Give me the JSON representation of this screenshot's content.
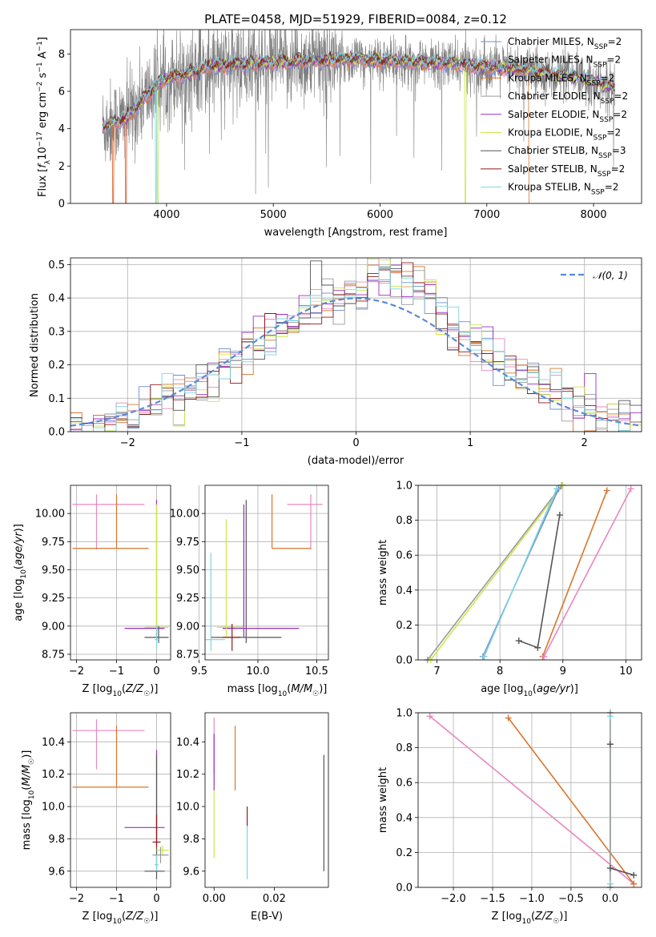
{
  "colors": {
    "Chabrier MILES": "#6d8fd2",
    "Salpeter MILES": "#e887c2",
    "Kroupa MILES": "#d9762c",
    "Chabrier ELODIE": "#9a9a9a",
    "Salpeter ELODIE": "#9b2fbf",
    "Kroupa ELODIE": "#cfe54a",
    "Chabrier STELIB": "#555555",
    "Salpeter STELIB": "#8c1a1a",
    "Kroupa STELIB": "#7ed3de",
    "gaussian": "#5b8ad6"
  },
  "chart_data": [
    {
      "id": "spectrum",
      "type": "line",
      "title": "PLATE=0458, MJD=51929, FIBERID=0084, z=0.12",
      "xlabel": "wavelength [Angstrom, rest frame]",
      "ylabel": "Flux [f_λ10^-17 erg cm^-2 s^-1 A^-1]",
      "xlim": [
        3100,
        8450
      ],
      "ylim": [
        0,
        9.3
      ],
      "xticks": [
        "4000",
        "5000",
        "6000",
        "7000",
        "8000"
      ],
      "yticks": [
        "0",
        "2",
        "4",
        "6",
        "8"
      ],
      "legend_entries": [
        "Chabrier MILES, N_SSP=2",
        "Salpeter MILES, N_SSP=2",
        "Kroupa MILES, N_SSP=2",
        "Chabrier ELODIE, N_SSP=2",
        "Salpeter ELODIE, N_SSP=2",
        "Kroupa ELODIE, N_SSP=2",
        "Chabrier STELIB, N_SSP=3",
        "Salpeter STELIB, N_SSP=2",
        "Kroupa STELIB, N_SSP=2"
      ],
      "legend_loc": "upper right",
      "continuum": {
        "x": [
          3400,
          3500,
          3600,
          3700,
          3800,
          3900,
          4000,
          4200,
          4400,
          4600,
          4800,
          5000,
          5200,
          5400,
          5600,
          5800,
          6000,
          6200,
          6400,
          6600,
          6800,
          7000,
          7200,
          7400,
          7600,
          7800,
          8000,
          8200
        ],
        "y": [
          4.1,
          4.3,
          4.5,
          5.0,
          5.7,
          6.2,
          6.7,
          6.9,
          7.3,
          7.4,
          7.5,
          7.5,
          7.6,
          7.6,
          7.7,
          7.7,
          7.6,
          7.6,
          7.5,
          7.5,
          7.4,
          7.3,
          7.2,
          7.1,
          6.9,
          6.7,
          6.5,
          6.1
        ]
      },
      "data_noise": 1.2,
      "grid": false
    },
    {
      "id": "residuals",
      "type": "histogram",
      "xlabel": "(data-model)/error",
      "ylabel": "Normed distribution",
      "xlim": [
        -2.5,
        2.5
      ],
      "ylim": [
        0,
        0.52
      ],
      "xticks": [
        "−2",
        "−1",
        "0",
        "1",
        "2"
      ],
      "yticks": [
        "0.0",
        "0.1",
        "0.2",
        "0.3",
        "0.4",
        "0.5"
      ],
      "legend_entries": [
        "𝒩(0, 1)"
      ],
      "legend_loc": "upper right",
      "bin_width": 0.1,
      "grid": true
    },
    {
      "id": "age_vs_Z",
      "type": "errorbar",
      "xlabel": "Z [log10(Z/Z☉)]",
      "ylabel": "age [log10(age/yr)]",
      "xlim": [
        -2.15,
        0.35
      ],
      "ylim": [
        8.7,
        10.25
      ],
      "xticks": [
        "−2",
        "−1",
        "0"
      ],
      "yticks": [
        "8.75",
        "9.00",
        "9.25",
        "9.50",
        "9.75",
        "10.00"
      ],
      "grid": true,
      "points": [
        {
          "s": "Salpeter MILES",
          "x": -1.5,
          "y": 10.08,
          "xmin": -2.1,
          "xmax": -0.3,
          "ymin": 9.68,
          "ymax": 10.17
        },
        {
          "s": "Kroupa MILES",
          "x": -1.0,
          "y": 9.69,
          "xmin": -2.1,
          "xmax": -0.2,
          "ymin": 9.69,
          "ymax": 10.17
        },
        {
          "s": "Salpeter ELODIE",
          "x": 0.0,
          "y": 8.98,
          "xmin": -0.8,
          "xmax": 0.2,
          "ymin": 8.9,
          "ymax": 10.12
        },
        {
          "s": "Kroupa ELODIE",
          "x": 0.0,
          "y": 8.99,
          "xmin": -0.3,
          "xmax": 0.3,
          "ymin": 8.9,
          "ymax": 10.08
        },
        {
          "s": "Chabrier STELIB",
          "x": 0.05,
          "y": 8.9,
          "xmin": -0.3,
          "xmax": 0.3,
          "ymin": 8.85,
          "ymax": 9.0
        },
        {
          "s": "Kroupa STELIB",
          "x": 0.0,
          "y": 8.88,
          "xmin": -0.05,
          "xmax": 0.05,
          "ymin": 8.8,
          "ymax": 9.0
        }
      ]
    },
    {
      "id": "age_vs_mass",
      "type": "errorbar",
      "xlabel": "mass [log10(M/M☉)]",
      "ylabel": "",
      "xlim": [
        9.55,
        10.6
      ],
      "ylim": [
        8.7,
        10.25
      ],
      "xticks": [
        "9.5",
        "10.0",
        "10.5"
      ],
      "yticks": [
        "8.75",
        "9.00",
        "9.25",
        "9.50",
        "9.75",
        "10.00"
      ],
      "grid": true,
      "points": [
        {
          "s": "Salpeter MILES",
          "x": 10.45,
          "y": 10.08,
          "xmin": 10.25,
          "xmax": 10.55,
          "ymin": 9.68,
          "ymax": 10.17
        },
        {
          "s": "Kroupa MILES",
          "x": 10.12,
          "y": 9.69,
          "xmin": 10.12,
          "xmax": 10.45,
          "ymin": 9.69,
          "ymax": 10.17
        },
        {
          "s": "Chabrier STELIB",
          "x": 9.9,
          "y": 8.9,
          "xmin": 9.6,
          "xmax": 10.2,
          "ymin": 8.85,
          "ymax": 10.12
        },
        {
          "s": "Salpeter ELODIE",
          "x": 9.88,
          "y": 8.98,
          "xmin": 9.7,
          "xmax": 10.35,
          "ymin": 8.9,
          "ymax": 10.08
        },
        {
          "s": "Kroupa ELODIE",
          "x": 9.73,
          "y": 8.99,
          "xmin": 9.65,
          "xmax": 9.88,
          "ymin": 8.9,
          "ymax": 9.95
        },
        {
          "s": "Salpeter STELIB",
          "x": 9.78,
          "y": 8.9,
          "xmin": 9.7,
          "xmax": 9.85,
          "ymin": 8.78,
          "ymax": 9.02
        },
        {
          "s": "Kroupa STELIB",
          "x": 9.6,
          "y": 8.88,
          "xmin": 9.55,
          "xmax": 9.72,
          "ymin": 8.78,
          "ymax": 9.65
        }
      ]
    },
    {
      "id": "weight_vs_age",
      "type": "line",
      "xlabel": "age [log10(age/yr)]",
      "ylabel": "mass weight",
      "xlim": [
        6.7,
        10.25
      ],
      "ylim": [
        0,
        1
      ],
      "xticks": [
        "7",
        "8",
        "9",
        "10"
      ],
      "yticks": [
        "0.0",
        "0.2",
        "0.4",
        "0.6",
        "0.8",
        "1.0"
      ],
      "grid": true,
      "series": [
        {
          "s": "Chabrier ELODIE",
          "x": [
            6.85,
            8.98
          ],
          "y": [
            0.0,
            1.0
          ]
        },
        {
          "s": "Kroupa ELODIE",
          "x": [
            6.9,
            9.0
          ],
          "y": [
            0.0,
            1.0
          ]
        },
        {
          "s": "Chabrier MILES",
          "x": [
            7.73,
            8.93
          ],
          "y": [
            0.02,
            0.98
          ]
        },
        {
          "s": "Kroupa STELIB",
          "x": [
            7.75,
            8.9
          ],
          "y": [
            0.02,
            0.98
          ]
        },
        {
          "s": "Chabrier STELIB",
          "x": [
            8.3,
            8.6,
            8.95
          ],
          "y": [
            0.11,
            0.07,
            0.83
          ]
        },
        {
          "s": "Kroupa MILES",
          "x": [
            8.68,
            9.7
          ],
          "y": [
            0.02,
            0.97
          ]
        },
        {
          "s": "Salpeter MILES",
          "x": [
            8.7,
            10.08
          ],
          "y": [
            0.02,
            0.98
          ]
        }
      ]
    },
    {
      "id": "mass_vs_Z",
      "type": "errorbar",
      "xlabel": "Z [log10(Z/Z☉)]",
      "ylabel": "mass [log10(M/M☉)]",
      "xlim": [
        -2.15,
        0.35
      ],
      "ylim": [
        9.5,
        10.58
      ],
      "xticks": [
        "−2",
        "−1",
        "0"
      ],
      "yticks": [
        "9.6",
        "9.8",
        "10.0",
        "10.2",
        "10.4"
      ],
      "grid": true,
      "points": [
        {
          "s": "Salpeter MILES",
          "x": -1.5,
          "y": 10.47,
          "xmin": -2.1,
          "xmax": -0.3,
          "ymin": 10.23,
          "ymax": 10.54
        },
        {
          "s": "Kroupa MILES",
          "x": -1.0,
          "y": 10.12,
          "xmin": -2.1,
          "xmax": -0.2,
          "ymin": 10.12,
          "ymax": 10.5
        },
        {
          "s": "Salpeter ELODIE",
          "x": 0.0,
          "y": 9.87,
          "xmin": -0.8,
          "xmax": 0.2,
          "ymin": 9.8,
          "ymax": 10.35
        },
        {
          "s": "Chabrier STELIB",
          "x": 0.0,
          "y": 9.6,
          "xmin": -0.3,
          "xmax": 0.2,
          "ymin": 9.55,
          "ymax": 10.32
        },
        {
          "s": "Kroupa ELODIE",
          "x": 0.15,
          "y": 9.73,
          "xmin": 0.0,
          "xmax": 0.3,
          "ymin": 9.7,
          "ymax": 9.76
        },
        {
          "s": "Chabrier ELODIE",
          "x": 0.1,
          "y": 9.7,
          "xmin": -0.1,
          "xmax": 0.3,
          "ymin": 9.65,
          "ymax": 9.75
        },
        {
          "s": "Salpeter STELIB",
          "x": 0.0,
          "y": 9.78,
          "xmin": -0.1,
          "xmax": 0.1,
          "ymin": 9.75,
          "ymax": 9.95
        },
        {
          "s": "Kroupa STELIB",
          "x": 0.0,
          "y": 9.64,
          "xmin": -0.05,
          "xmax": 0.05,
          "ymin": 9.6,
          "ymax": 9.7
        }
      ]
    },
    {
      "id": "mass_vs_EBV",
      "type": "errorbar",
      "xlabel": "E(B-V)",
      "ylabel": "",
      "xlim": [
        -0.003,
        0.038
      ],
      "ylim": [
        9.5,
        10.58
      ],
      "xticks": [
        "0.00",
        "0.02"
      ],
      "yticks": [
        "9.6",
        "9.8",
        "10.0",
        "10.2",
        "10.4"
      ],
      "grid": false,
      "points": [
        {
          "s": "Salpeter MILES",
          "x": 0.0,
          "y": 10.47,
          "xmin": 0.0,
          "xmax": 0.0,
          "ymin": 10.2,
          "ymax": 10.55
        },
        {
          "s": "Salpeter ELODIE",
          "x": 0.0,
          "y": 10.35,
          "xmin": 0.0,
          "xmax": 0.0,
          "ymin": 10.1,
          "ymax": 10.45
        },
        {
          "s": "Kroupa ELODIE",
          "x": 0.0,
          "y": 9.85,
          "xmin": 0.0,
          "xmax": 0.0,
          "ymin": 9.68,
          "ymax": 10.1
        },
        {
          "s": "Kroupa MILES",
          "x": 0.007,
          "y": 10.3,
          "xmin": 0.007,
          "xmax": 0.007,
          "ymin": 10.1,
          "ymax": 10.5
        },
        {
          "s": "Salpeter STELIB",
          "x": 0.011,
          "y": 9.94,
          "xmin": 0.011,
          "xmax": 0.011,
          "ymin": 9.88,
          "ymax": 10.0
        },
        {
          "s": "Kroupa STELIB",
          "x": 0.011,
          "y": 9.7,
          "xmin": 0.011,
          "xmax": 0.011,
          "ymin": 9.55,
          "ymax": 9.88
        },
        {
          "s": "Chabrier STELIB",
          "x": 0.0365,
          "y": 9.9,
          "xmin": 0.0365,
          "xmax": 0.0365,
          "ymin": 9.6,
          "ymax": 10.32
        }
      ]
    },
    {
      "id": "weight_vs_Z",
      "type": "line",
      "xlabel": "Z [log10(Z/Z☉)]",
      "ylabel": "mass weight",
      "xlim": [
        -2.45,
        0.4
      ],
      "ylim": [
        0,
        1
      ],
      "xticks": [
        "−2.0",
        "−1.5",
        "−1.0",
        "−0.5",
        "0.0"
      ],
      "yticks": [
        "0.0",
        "0.2",
        "0.4",
        "0.6",
        "0.8",
        "1.0"
      ],
      "grid": true,
      "series": [
        {
          "s": "Salpeter MILES",
          "x": [
            -2.3,
            0.3
          ],
          "y": [
            0.98,
            0.02
          ]
        },
        {
          "s": "Kroupa MILES",
          "x": [
            -1.3,
            0.3
          ],
          "y": [
            0.97,
            0.02
          ]
        },
        {
          "s": "Chabrier STELIB",
          "x": [
            0.0,
            0.0,
            0.3
          ],
          "y": [
            0.82,
            0.11,
            0.07
          ]
        },
        {
          "s": "Kroupa STELIB",
          "x": [
            0.0,
            0.0
          ],
          "y": [
            0.02,
            0.98
          ]
        },
        {
          "s": "Chabrier ELODIE",
          "x": [
            0.0,
            0.0
          ],
          "y": [
            0.0,
            1.0
          ]
        }
      ]
    }
  ]
}
